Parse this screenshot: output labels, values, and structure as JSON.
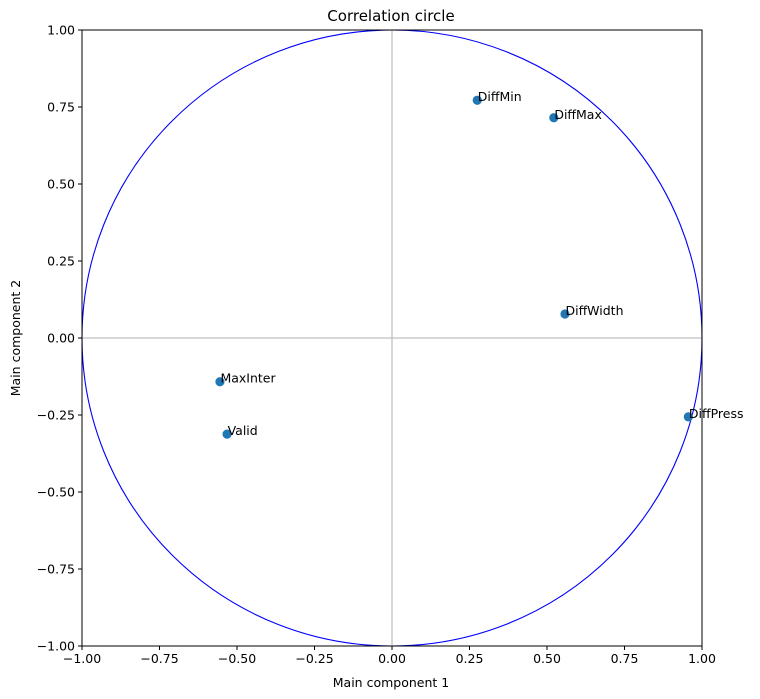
{
  "chart_data": {
    "type": "scatter",
    "title": "Correlation circle",
    "xlabel": "Main component 1",
    "ylabel": "Main component 2",
    "xlim": [
      -1.0,
      1.0
    ],
    "ylim": [
      -1.0,
      1.0
    ],
    "xticks": [
      "−1.00",
      "−0.75",
      "−0.50",
      "−0.25",
      "0.00",
      "0.25",
      "0.50",
      "0.75",
      "1.00"
    ],
    "yticks": [
      "−1.00",
      "−0.75",
      "−0.50",
      "−0.25",
      "0.00",
      "0.25",
      "0.50",
      "0.75",
      "1.00"
    ],
    "grid": false,
    "reference_lines": [
      0,
      0
    ],
    "unit_circle": true,
    "points": [
      {
        "label": "DiffMin",
        "x": 0.275,
        "y": 0.772
      },
      {
        "label": "DiffMax",
        "x": 0.522,
        "y": 0.715
      },
      {
        "label": "DiffWidth",
        "x": 0.558,
        "y": 0.078
      },
      {
        "label": "DiffPress",
        "x": 0.956,
        "y": -0.256
      },
      {
        "label": "MaxInter",
        "x": -0.555,
        "y": -0.142
      },
      {
        "label": "Valid",
        "x": -0.532,
        "y": -0.312
      }
    ],
    "colors": {
      "point": "#1f77b4",
      "circle": "#0000ff",
      "reference": "#c0c0c0"
    }
  }
}
